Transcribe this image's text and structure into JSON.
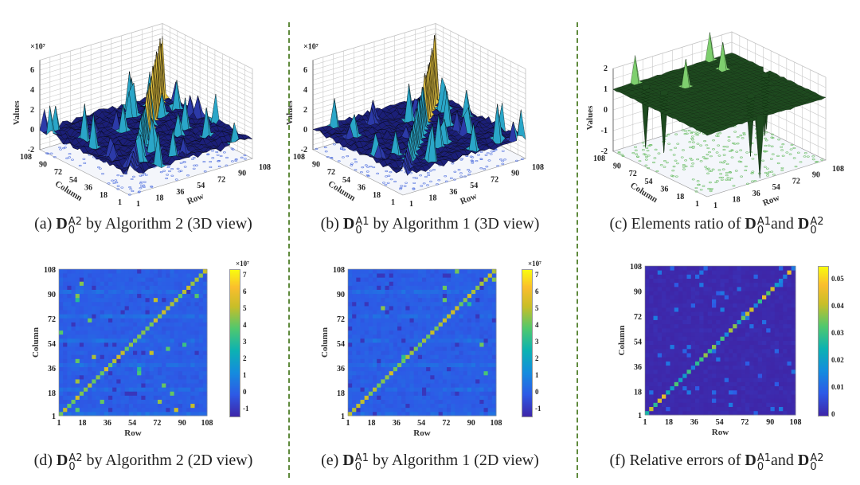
{
  "chart_data": [
    {
      "id": "a",
      "type": "surface3d",
      "caption": {
        "prefix": "(a)",
        "symbol": "D",
        "sub": "0",
        "sup": "A2",
        "mid": "",
        "symbol2": "",
        "sub2": "",
        "sup2": "",
        "suffix": " by Algorithm 2 (3D view)"
      },
      "xlabel": "Row",
      "ylabel": "Column",
      "zlabel": "Values",
      "zexponent": "×10⁷",
      "xticks": [
        "1",
        "18",
        "36",
        "54",
        "72",
        "90",
        "108"
      ],
      "yticks": [
        "1",
        "18",
        "36",
        "54",
        "72",
        "90",
        "108"
      ],
      "zticks": [
        "-2",
        "0",
        "2",
        "4",
        "6"
      ],
      "zlim": [
        -2,
        7
      ],
      "matrix_size": 108,
      "diagonal_peak": 7,
      "colormap": "dark-blue"
    },
    {
      "id": "b",
      "type": "surface3d",
      "caption": {
        "prefix": "(b)",
        "symbol": "D",
        "sub": "0",
        "sup": "A1",
        "mid": "",
        "symbol2": "",
        "sub2": "",
        "sup2": "",
        "suffix": " by Algorithm 1 (3D view)"
      },
      "xlabel": "Row",
      "ylabel": "Column",
      "zlabel": "Values",
      "zexponent": "×10⁷",
      "xticks": [
        "1",
        "18",
        "36",
        "54",
        "72",
        "90",
        "108"
      ],
      "yticks": [
        "1",
        "18",
        "36",
        "54",
        "72",
        "90",
        "108"
      ],
      "zticks": [
        "-2",
        "0",
        "2",
        "4",
        "6"
      ],
      "zlim": [
        -2,
        7
      ],
      "matrix_size": 108,
      "diagonal_peak": 7,
      "colormap": "dark-blue"
    },
    {
      "id": "c",
      "type": "surface3d",
      "caption": {
        "prefix": "(c)",
        "symbol": "",
        "sub": "",
        "sup": "",
        "mid": " Elements ratio of ",
        "symbol2": "D",
        "sub2": "0",
        "sup2": "A1",
        "suffix": "and ",
        "symbol3": "D",
        "sub3": "0",
        "sup3": "A2"
      },
      "xlabel": "Row",
      "ylabel": "Column",
      "zlabel": "Values",
      "zexponent": "",
      "xticks": [
        "1",
        "18",
        "36",
        "54",
        "72",
        "90",
        "108"
      ],
      "yticks": [
        "1",
        "18",
        "36",
        "54",
        "72",
        "90",
        "108"
      ],
      "zticks": [
        "-2",
        "-1",
        "0",
        "1",
        "2"
      ],
      "zlim": [
        -2,
        2
      ],
      "matrix_size": 108,
      "base_value": 1,
      "colormap": "dark-green"
    },
    {
      "id": "d",
      "type": "heatmap",
      "caption": {
        "prefix": "(d)",
        "symbol": "D",
        "sub": "0",
        "sup": "A2",
        "suffix": " by Algorithm 2 (2D view)"
      },
      "xlabel": "Row",
      "ylabel": "Column",
      "xticks": [
        "1",
        "18",
        "36",
        "54",
        "72",
        "90",
        "108"
      ],
      "yticks": [
        "1",
        "18",
        "36",
        "54",
        "72",
        "90",
        "108"
      ],
      "colorbar": {
        "exponent": "×10⁷",
        "ticks": [
          "-1",
          "0",
          "1",
          "2",
          "3",
          "4",
          "5",
          "6",
          "7"
        ],
        "range": [
          -1.4,
          7.4
        ]
      },
      "diagonal_value": 5.5
    },
    {
      "id": "e",
      "type": "heatmap",
      "caption": {
        "prefix": "(e)",
        "symbol": "D",
        "sub": "0",
        "sup": "A1",
        "suffix": " by Algorithm 1 (2D view)"
      },
      "xlabel": "Row",
      "ylabel": "Column",
      "xticks": [
        "1",
        "18",
        "36",
        "54",
        "72",
        "90",
        "108"
      ],
      "yticks": [
        "1",
        "18",
        "36",
        "54",
        "72",
        "90",
        "108"
      ],
      "colorbar": {
        "exponent": "×10⁷",
        "ticks": [
          "-1",
          "0",
          "1",
          "2",
          "3",
          "4",
          "5",
          "6",
          "7"
        ],
        "range": [
          -1.4,
          7.4
        ]
      },
      "diagonal_value": 5.5
    },
    {
      "id": "f",
      "type": "heatmap",
      "caption": {
        "prefix": "(f)",
        "mid": " Relative errors of ",
        "symbol2": "D",
        "sub2": "0",
        "sup2": "A1",
        "suffix": "and ",
        "symbol3": "D",
        "sub3": "0",
        "sup3": "A2"
      },
      "xlabel": "Row",
      "ylabel": "Column",
      "xticks": [
        "1",
        "18",
        "36",
        "54",
        "72",
        "90",
        "108"
      ],
      "yticks": [
        "1",
        "18",
        "36",
        "54",
        "72",
        "90",
        "108"
      ],
      "colorbar": {
        "exponent": "",
        "ticks": [
          "0",
          "0.01",
          "0.02",
          "0.03",
          "0.04",
          "0.05"
        ],
        "range": [
          0,
          0.055
        ]
      },
      "diagonal_value": 0.045
    }
  ]
}
